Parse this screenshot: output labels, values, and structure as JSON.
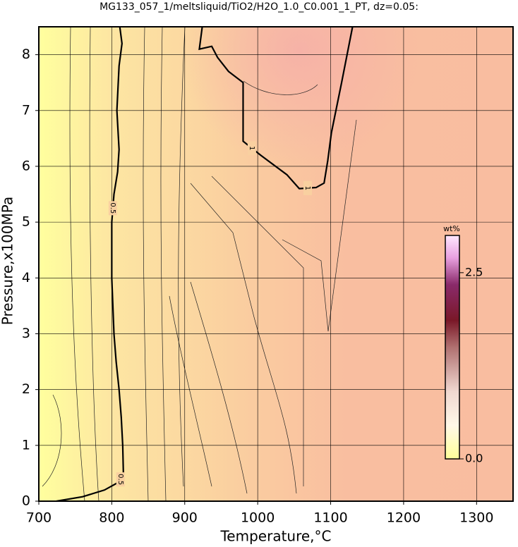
{
  "chart_data": {
    "type": "contour",
    "title": "MG133_057_1/meltsliquid/TiO2/H2O_1.0_C0.001_1_PT, dz=0.05:",
    "xlabel": "Temperature,°C",
    "ylabel": "Pressure,x100MPa",
    "xlim": [
      700,
      1350
    ],
    "xticks": [
      700,
      800,
      900,
      1000,
      1100,
      1200,
      1300
    ],
    "ylim": [
      0,
      8.5
    ],
    "yticks": [
      0,
      1,
      2,
      3,
      4,
      5,
      6,
      7,
      8
    ],
    "grid": true,
    "contours": [
      {
        "level": 0.5,
        "x": [
          724,
          760,
          790,
          808,
          816,
          815,
          813,
          810,
          806,
          803,
          800,
          800,
          803,
          808,
          810,
          807,
          810,
          814,
          811
        ],
        "y": [
          0,
          0.08,
          0.2,
          0.33,
          0.45,
          1,
          1.5,
          2,
          2.5,
          3,
          4,
          5,
          5.5,
          5.9,
          6.3,
          7,
          7.8,
          8.2,
          8.5
        ]
      },
      {
        "level": 1,
        "x": [
          924,
          920,
          937,
          945,
          960,
          980,
          980,
          980,
          1004,
          1040,
          1057,
          1080,
          1091,
          1096,
          1101,
          1115,
          1130
        ],
        "y": [
          8.5,
          8.1,
          8.15,
          7.95,
          7.7,
          7.5,
          6.6,
          6.45,
          6.2,
          5.85,
          5.6,
          5.62,
          5.7,
          6.1,
          6.6,
          7.5,
          8.5
        ]
      }
    ],
    "colorbar": {
      "label": "wt%",
      "lim": [
        0,
        3
      ],
      "ticks": [
        {
          "value": 0,
          "label": "0.0"
        },
        {
          "value": 2.5,
          "label": "2.5"
        }
      ]
    }
  }
}
